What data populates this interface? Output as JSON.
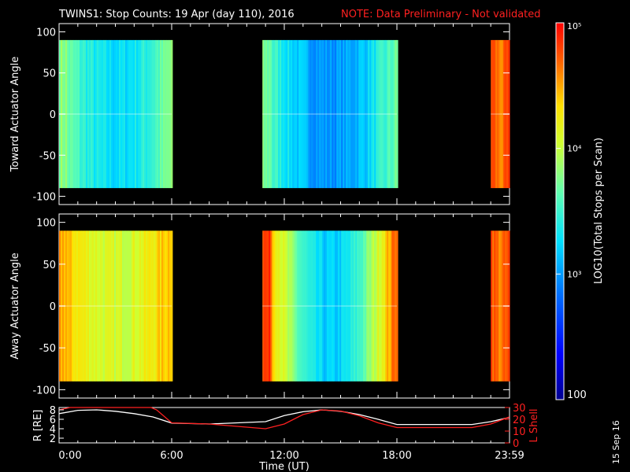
{
  "title": {
    "main": "TWINS1: Stop Counts: 19 Apr (day 110), 2016",
    "note": "NOTE: Data Preliminary - Not validated"
  },
  "colorbar": {
    "label": "LOG10(Total Stops per Scan)",
    "ticks": [
      "10⁵",
      "10⁴",
      "10³",
      "100"
    ],
    "range": [
      100,
      100000
    ]
  },
  "stamp": "15 Sep 16",
  "chart_data": [
    {
      "type": "heatmap",
      "ylabel": "Toward Actuator Angle",
      "ylim": [
        -110,
        110
      ],
      "yticks": [
        "100",
        "50",
        "0",
        "-50",
        "-100"
      ],
      "angle_range": [
        -90,
        90
      ],
      "data_blocks": [
        {
          "start": "0:00",
          "end": "6:00",
          "log_counts_range": [
            3.2,
            3.8
          ]
        },
        {
          "start": "10:50",
          "end": "18:00",
          "log_counts_range": [
            2.9,
            3.7
          ]
        },
        {
          "start": "23:00",
          "end": "23:59",
          "log_counts_range": [
            4.6,
            4.8
          ]
        }
      ]
    },
    {
      "type": "heatmap",
      "ylabel": "Away Actuator Angle",
      "ylim": [
        -110,
        110
      ],
      "yticks": [
        "100",
        "50",
        "0",
        "-50",
        "-100"
      ],
      "angle_range": [
        -90,
        90
      ],
      "data_blocks": [
        {
          "start": "0:00",
          "end": "6:00",
          "log_counts_range": [
            4.0,
            4.5
          ]
        },
        {
          "start": "10:50",
          "end": "18:00",
          "log_counts_range": [
            3.0,
            4.8
          ]
        },
        {
          "start": "23:00",
          "end": "23:59",
          "log_counts_range": [
            4.6,
            4.8
          ]
        }
      ]
    },
    {
      "type": "line",
      "ylabel": "R [RE]",
      "ylabel_right": "L Shell",
      "yticks_left": [
        "8",
        "6",
        "4",
        "2"
      ],
      "yticks_right": [
        "30",
        "20",
        "10",
        "0"
      ],
      "ylim_left": [
        1,
        8.5
      ],
      "ylim_right": [
        0,
        30
      ],
      "xlabel": "Time (UT)",
      "xticks": [
        "0:00",
        "6:00",
        "12:00",
        "18:00",
        "23:59"
      ],
      "series": [
        {
          "color": "#ffffff",
          "x": [
            0,
            1,
            2,
            3,
            4,
            5,
            6,
            8,
            11,
            12,
            13,
            14,
            15,
            16,
            17,
            18,
            20,
            22,
            23,
            23.99
          ],
          "y": [
            7.2,
            7.9,
            8.0,
            7.7,
            7.2,
            6.5,
            5.2,
            5.0,
            5.5,
            6.8,
            7.6,
            8.0,
            7.7,
            7.0,
            6.0,
            4.9,
            4.9,
            4.9,
            5.5,
            6.4
          ]
        },
        {
          "color": "#ff2020",
          "x": [
            0,
            0.6,
            4.9,
            5.2,
            6,
            8,
            11,
            12,
            13,
            14,
            15,
            16,
            17,
            18,
            20,
            22,
            23,
            23.99
          ],
          "y": [
            28,
            31,
            31,
            28,
            17,
            16,
            12,
            16,
            24,
            28,
            27,
            23,
            17,
            13,
            13,
            13,
            16,
            22
          ]
        }
      ]
    }
  ]
}
